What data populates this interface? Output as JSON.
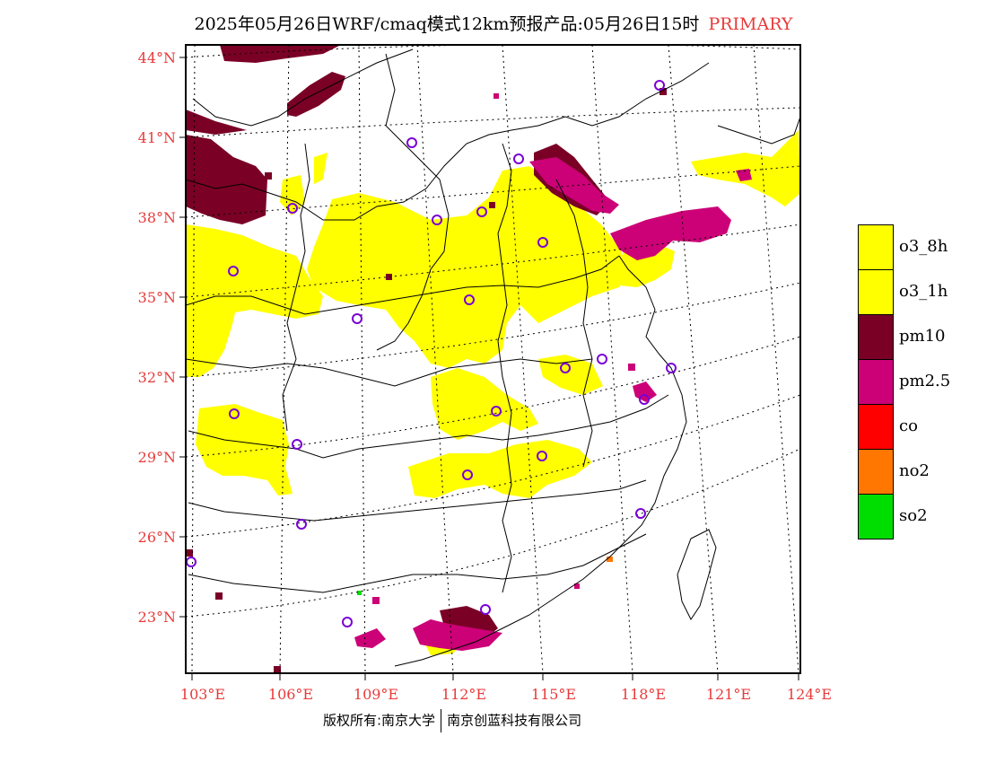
{
  "title": {
    "main": "2025年05月26日WRF/cmaq模式12km预报产品:05月26日15时",
    "tag": "PRIMARY"
  },
  "map": {
    "lat_labels": [
      "44°N",
      "41°N",
      "38°N",
      "35°N",
      "32°N",
      "29°N",
      "26°N",
      "23°N"
    ],
    "lon_labels": [
      "103°E",
      "106°E",
      "109°E",
      "112°E",
      "115°E",
      "118°E",
      "121°E",
      "124°E"
    ],
    "colors": {
      "o3_8h": "#ffff00",
      "o3_1h": "#ffff00",
      "pm10": "#7a0026",
      "pm25": "#cc0077",
      "co": "#ff0000",
      "no2": "#ff7700",
      "so2": "#00dd00",
      "station": "#7a00d6",
      "axis_label": "#e83a3a"
    }
  },
  "legend": [
    {
      "label": "o3_8h",
      "color": "#ffff00"
    },
    {
      "label": "o3_1h",
      "color": "#ffff00"
    },
    {
      "label": "pm10",
      "color": "#7a0026"
    },
    {
      "label": "pm2.5",
      "color": "#cc0077"
    },
    {
      "label": "co",
      "color": "#ff0000"
    },
    {
      "label": "no2",
      "color": "#ff7700"
    },
    {
      "label": "so2",
      "color": "#00dd00"
    }
  ],
  "footer": {
    "left": "版权所有:南京大学",
    "right": "南京创蓝科技有限公司"
  }
}
